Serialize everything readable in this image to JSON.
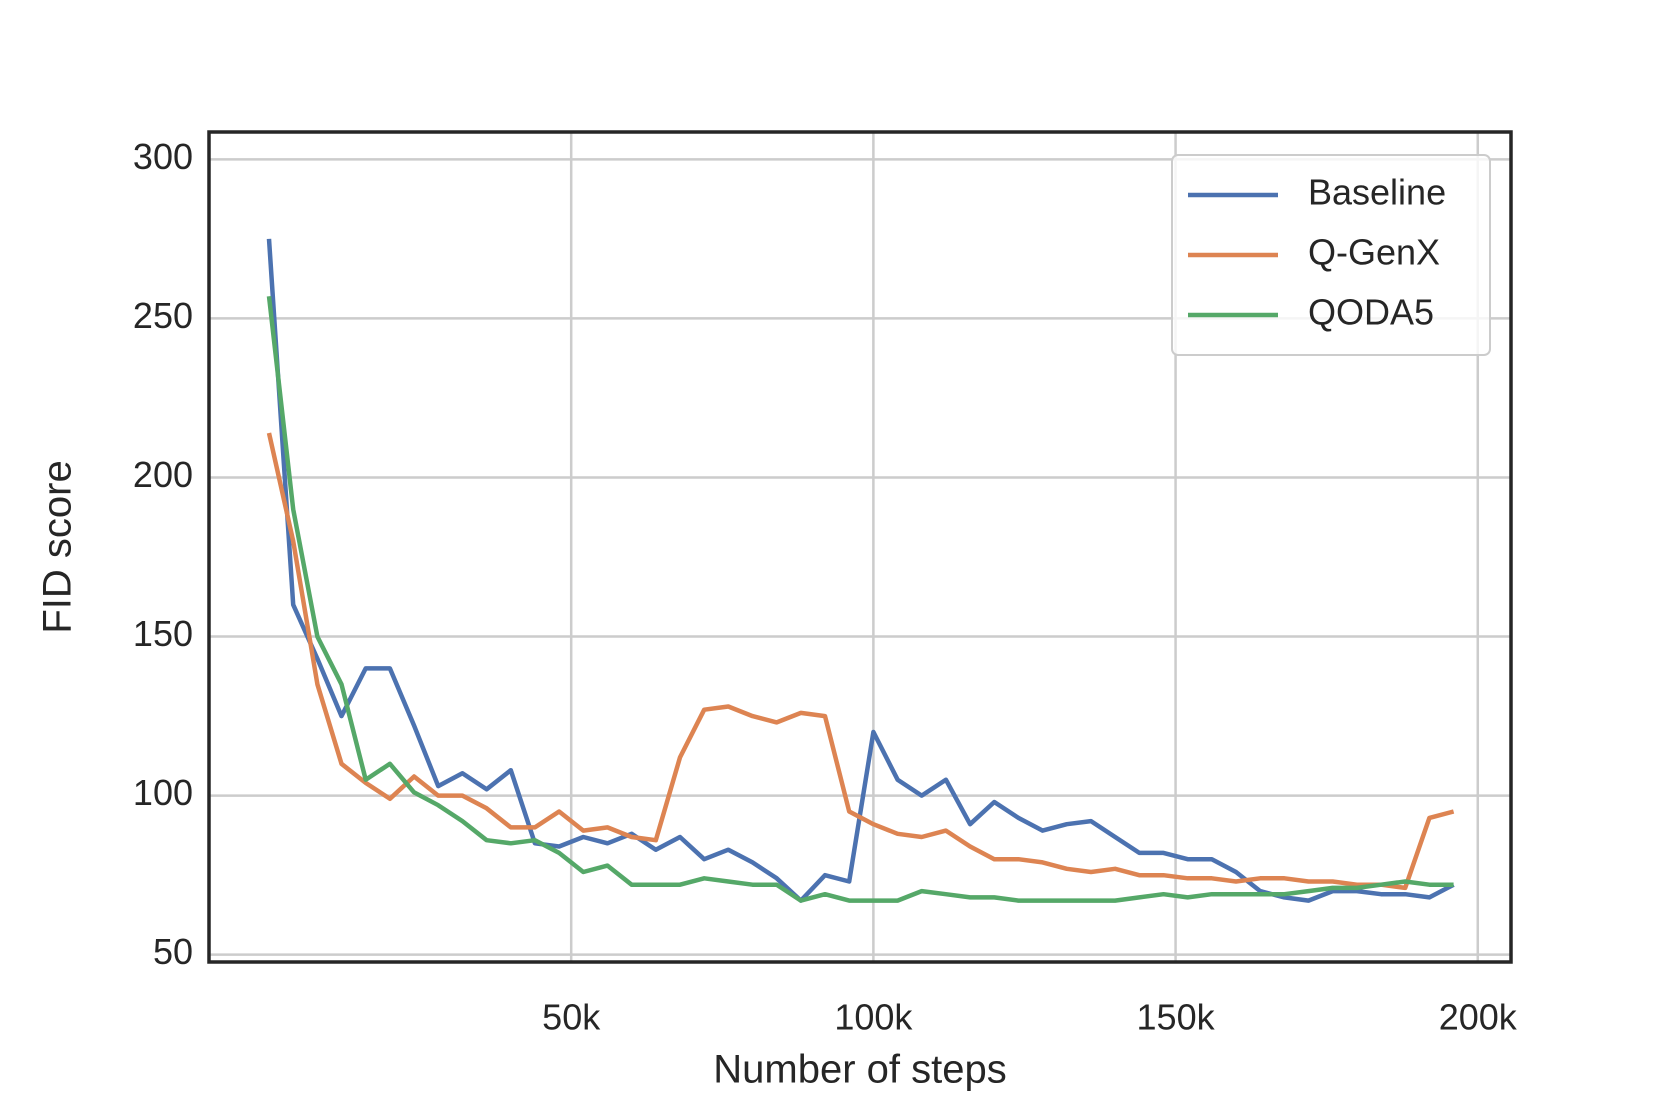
{
  "chart_data": {
    "type": "line",
    "x_label": "Number of steps",
    "y_label": "FID score",
    "x": [
      0,
      4000,
      8000,
      12000,
      16000,
      20000,
      24000,
      28000,
      32000,
      36000,
      40000,
      44000,
      48000,
      52000,
      56000,
      60000,
      64000,
      68000,
      72000,
      76000,
      80000,
      84000,
      88000,
      92000,
      96000,
      100000,
      104000,
      108000,
      112000,
      116000,
      120000,
      124000,
      128000,
      132000,
      136000,
      140000,
      144000,
      148000,
      152000,
      156000,
      160000,
      164000,
      168000,
      172000,
      176000,
      180000,
      184000,
      188000,
      192000,
      196000
    ],
    "series": [
      {
        "name": "Baseline",
        "color": "#4c72b0",
        "values": [
          275,
          160,
          143,
          125,
          140,
          140,
          122,
          103,
          107,
          102,
          108,
          85,
          84,
          87,
          85,
          88,
          83,
          87,
          80,
          83,
          79,
          74,
          67,
          75,
          73,
          120,
          105,
          100,
          105,
          91,
          98,
          93,
          89,
          91,
          92,
          87,
          82,
          82,
          80,
          80,
          76,
          70,
          68,
          67,
          70,
          70,
          69,
          69,
          68,
          72
        ]
      },
      {
        "name": "Q-GenX",
        "color": "#dd8452",
        "values": [
          214,
          180,
          135,
          110,
          104,
          99,
          106,
          100,
          100,
          96,
          90,
          90,
          95,
          89,
          90,
          87,
          86,
          112,
          127,
          128,
          125,
          123,
          126,
          125,
          95,
          91,
          88,
          87,
          89,
          84,
          80,
          80,
          79,
          77,
          76,
          77,
          75,
          75,
          74,
          74,
          73,
          74,
          74,
          73,
          73,
          72,
          72,
          71,
          93,
          95
        ]
      },
      {
        "name": "QODA5",
        "color": "#55a868",
        "values": [
          257,
          190,
          150,
          135,
          105,
          110,
          101,
          97,
          92,
          86,
          85,
          86,
          82,
          76,
          78,
          72,
          72,
          72,
          74,
          73,
          72,
          72,
          67,
          69,
          67,
          67,
          67,
          70,
          69,
          68,
          68,
          67,
          67,
          67,
          67,
          67,
          68,
          69,
          68,
          69,
          69,
          69,
          69,
          70,
          71,
          71,
          72,
          73,
          72,
          72
        ]
      }
    ],
    "xlim": [
      -9929,
      205500
    ],
    "ylim": [
      47.7,
      308.6
    ],
    "xticks": [
      {
        "value": 50000,
        "label": "50k"
      },
      {
        "value": 100000,
        "label": "100k"
      },
      {
        "value": 150000,
        "label": "150k"
      },
      {
        "value": 200000,
        "label": "200k"
      }
    ],
    "yticks": [
      50,
      100,
      150,
      200,
      250,
      300
    ],
    "grid": true,
    "legend": "upper right"
  }
}
